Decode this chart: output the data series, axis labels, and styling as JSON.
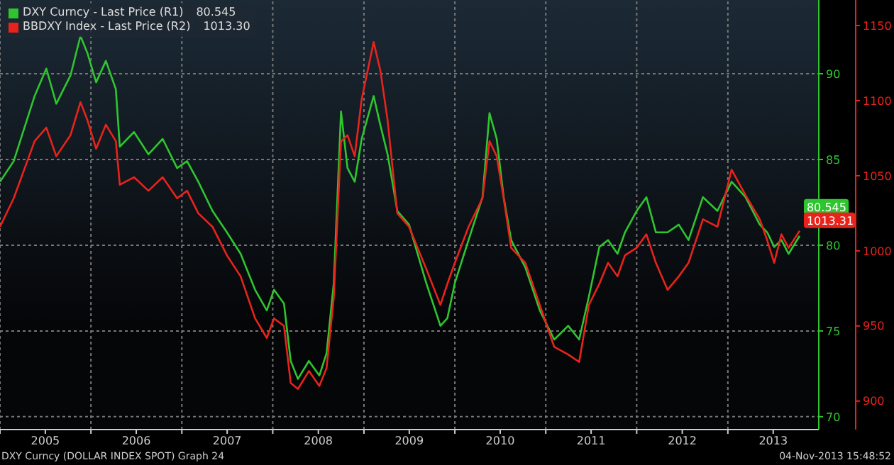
{
  "chart_data": {
    "type": "line",
    "x": [
      "2005-01-01",
      "2005-02-25",
      "2005-05-20",
      "2005-07-06",
      "2005-08-15",
      "2005-10-11",
      "2005-11-20",
      "2005-12-18",
      "2006-01-22",
      "2006-03-02",
      "2006-04-11",
      "2006-04-27",
      "2006-06-23",
      "2006-08-20",
      "2006-10-16",
      "2006-12-13",
      "2007-01-22",
      "2007-03-08",
      "2007-05-04",
      "2007-07-01",
      "2007-08-25",
      "2007-10-22",
      "2007-12-08",
      "2008-01-06",
      "2008-02-15",
      "2008-03-13",
      "2008-04-11",
      "2008-05-25",
      "2008-07-06",
      "2008-08-04",
      "2008-09-02",
      "2008-10-01",
      "2008-10-27",
      "2008-11-25",
      "2008-12-23",
      "2009-02-09",
      "2009-03-08",
      "2009-04-06",
      "2009-05-15",
      "2009-07-01",
      "2009-09-08",
      "2009-11-04",
      "2009-12-02",
      "2010-01-01",
      "2010-02-25",
      "2010-04-22",
      "2010-05-20",
      "2010-06-18",
      "2010-07-16",
      "2010-08-15",
      "2010-10-11",
      "2010-12-08",
      "2011-02-04",
      "2011-04-01",
      "2011-05-15",
      "2011-06-23",
      "2011-08-04",
      "2011-09-08",
      "2011-10-16",
      "2011-11-15",
      "2012-01-01",
      "2012-02-09",
      "2012-03-18",
      "2012-05-04",
      "2012-06-18",
      "2012-07-27",
      "2012-09-23",
      "2012-11-20",
      "2013-01-16",
      "2013-03-13",
      "2013-05-09",
      "2013-06-08",
      "2013-07-06",
      "2013-08-04",
      "2013-09-02",
      "2013-10-16"
    ],
    "series": [
      {
        "name": "DXY Curncy - Last Price (R1)",
        "color": "#2fc52f",
        "axis": "y",
        "values": [
          83.7,
          84.9,
          88.7,
          90.3,
          88.25,
          89.9,
          92.2,
          91.2,
          89.5,
          90.75,
          89.1,
          85.75,
          86.6,
          85.3,
          86.2,
          84.5,
          84.9,
          83.7,
          82,
          80.75,
          79.5,
          77.4,
          76.2,
          77.4,
          76.6,
          73.25,
          72.2,
          73.25,
          72.4,
          73.7,
          77.8,
          87.8,
          84.5,
          83.7,
          86.2,
          88.7,
          87,
          85.3,
          82,
          81.2,
          77.8,
          75.3,
          75.75,
          77.8,
          80.3,
          82.8,
          87.7,
          86.2,
          82.8,
          80.3,
          78.7,
          76.2,
          74.5,
          75.3,
          74.5,
          77,
          79.9,
          80.3,
          79.5,
          80.75,
          82,
          82.8,
          80.75,
          80.75,
          81.2,
          80.3,
          82.8,
          82,
          83.7,
          82.8,
          81.2,
          80.75,
          79.9,
          80.3,
          79.5,
          80.545
        ],
        "value_labels": [
          null,
          null,
          null,
          null,
          null,
          null,
          null,
          null,
          null,
          null,
          null,
          null,
          null,
          null,
          null,
          null,
          null,
          null,
          null,
          null,
          null,
          null,
          null,
          null,
          null,
          null,
          null,
          null,
          null,
          null,
          null,
          null,
          null,
          null,
          null,
          null,
          null,
          null,
          null,
          null,
          null,
          null,
          null,
          null,
          null,
          null,
          null,
          null,
          null,
          null,
          null,
          null,
          null,
          null,
          null,
          null,
          null,
          null,
          null,
          null,
          null,
          null,
          null,
          null,
          null,
          null,
          null,
          null,
          null,
          null,
          null,
          null,
          null,
          null,
          null,
          "80.545"
        ]
      },
      {
        "name": "BBDXY Index - Last Price (R2)",
        "color": "#e8231c",
        "axis": "y2",
        "values": [
          1016,
          1035,
          1073,
          1082,
          1063,
          1077,
          1099,
          1087,
          1068,
          1084,
          1073,
          1044,
          1049,
          1040,
          1049,
          1035,
          1040,
          1025,
          1016,
          997,
          983,
          955,
          942,
          955,
          950,
          912,
          908,
          920,
          910,
          922,
          969,
          1073,
          1077,
          1063,
          1101,
          1139,
          1120,
          1087,
          1025,
          1016,
          988,
          964,
          978,
          992,
          1016,
          1035,
          1073,
          1063,
          1035,
          1002,
          992,
          964,
          936,
          931,
          926,
          964,
          978,
          992,
          983,
          997,
          1002,
          1011,
          992,
          974,
          983,
          992,
          1021,
          1016,
          1054,
          1037,
          1021,
          1007,
          992,
          1011,
          1002,
          1013.31
        ],
        "value_labels": [
          null,
          null,
          null,
          null,
          null,
          null,
          null,
          null,
          null,
          null,
          null,
          null,
          null,
          null,
          null,
          null,
          null,
          null,
          null,
          null,
          null,
          null,
          null,
          null,
          null,
          null,
          null,
          null,
          null,
          null,
          null,
          null,
          null,
          null,
          null,
          null,
          null,
          null,
          null,
          null,
          null,
          null,
          null,
          null,
          null,
          null,
          null,
          null,
          null,
          null,
          null,
          null,
          null,
          null,
          null,
          null,
          null,
          null,
          null,
          null,
          null,
          null,
          null,
          null,
          null,
          null,
          null,
          null,
          null,
          null,
          null,
          null,
          null,
          null,
          null,
          "1013.31"
        ]
      }
    ],
    "xlim": [
      "2005-01-01",
      "2014-01-01"
    ],
    "xticks": [
      {
        "value": "2005-01-01",
        "label": null
      },
      {
        "value": "2005-07-02",
        "label": "2005"
      },
      {
        "value": "2006-01-01",
        "label": null
      },
      {
        "value": "2006-07-02",
        "label": "2006"
      },
      {
        "value": "2007-01-01",
        "label": null
      },
      {
        "value": "2007-07-02",
        "label": "2007"
      },
      {
        "value": "2008-01-01",
        "label": null
      },
      {
        "value": "2008-07-02",
        "label": "2008"
      },
      {
        "value": "2009-01-01",
        "label": null
      },
      {
        "value": "2009-07-02",
        "label": "2009"
      },
      {
        "value": "2010-01-01",
        "label": null
      },
      {
        "value": "2010-07-02",
        "label": "2010"
      },
      {
        "value": "2011-01-01",
        "label": null
      },
      {
        "value": "2011-07-02",
        "label": "2011"
      },
      {
        "value": "2012-01-01",
        "label": null
      },
      {
        "value": "2012-07-02",
        "label": "2012"
      },
      {
        "value": "2013-01-01",
        "label": null
      },
      {
        "value": "2013-07-02",
        "label": "2013"
      }
    ],
    "ylim": [
      69.25,
      94.3
    ],
    "yticks": [
      70,
      75,
      80,
      85,
      90
    ],
    "y2lim": [
      881,
      1167
    ],
    "y2ticks": [
      900,
      950,
      1000,
      1050,
      1100,
      1150
    ],
    "grid": true,
    "legend": "top left",
    "marker": "none",
    "line_style": "solid",
    "annotations": [
      "80.545",
      "1013.30",
      "DXY Curncy (DOLLAR INDEX SPOT) Graph 24",
      "04-Nov-2013 15:48:52"
    ]
  }
}
